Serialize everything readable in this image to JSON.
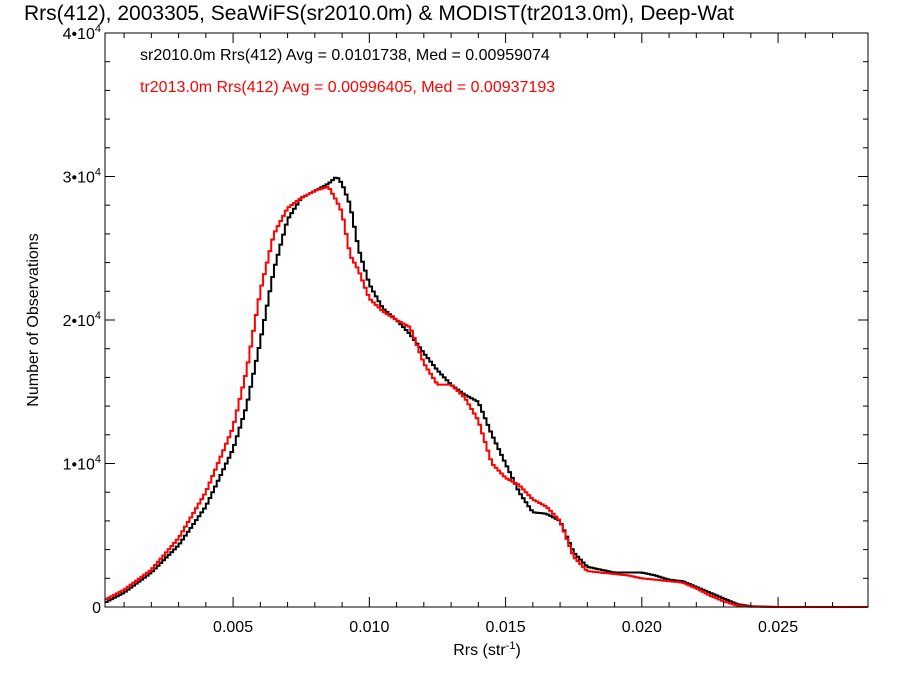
{
  "chart_data": {
    "type": "line",
    "title": "Rrs(412), 2003305, SeaWiFS(sr2010.0m) & MODIST(tr2013.0m), Deep-Wat",
    "xlabel": "Rrs (str",
    "xlabel_sup": "-1",
    "xlabel_end": ")",
    "ylabel": "Number of Observations",
    "xlim": [
      0.0003,
      0.0283
    ],
    "ylim": [
      0,
      40000
    ],
    "x_ticks": [
      {
        "v": 0.005,
        "label": "0.005"
      },
      {
        "v": 0.01,
        "label": "0.010"
      },
      {
        "v": 0.015,
        "label": "0.015"
      },
      {
        "v": 0.02,
        "label": "0.020"
      },
      {
        "v": 0.025,
        "label": "0.025"
      }
    ],
    "y_ticks": [
      {
        "v": 0,
        "base": "0",
        "exp": ""
      },
      {
        "v": 10000,
        "base": "1•10",
        "exp": "4"
      },
      {
        "v": 20000,
        "base": "2•10",
        "exp": "4"
      },
      {
        "v": 30000,
        "base": "3•10",
        "exp": "4"
      },
      {
        "v": 40000,
        "base": "4•10",
        "exp": "4"
      }
    ],
    "grid": false,
    "annotations": [
      "sr2010.0m Rrs(412) Avg = 0.0101738, Med = 0.00959074",
      "tr2013.0m Rrs(412) Avg = 0.00996405, Med = 0.00937193"
    ],
    "series": [
      {
        "color": "#000000",
        "x": [
          0.0003,
          0.001,
          0.002,
          0.003,
          0.004,
          0.005,
          0.0055,
          0.006,
          0.0065,
          0.007,
          0.0075,
          0.008,
          0.0085,
          0.0088,
          0.009,
          0.0093,
          0.0096,
          0.01,
          0.0105,
          0.011,
          0.0115,
          0.012,
          0.0125,
          0.013,
          0.0135,
          0.014,
          0.0145,
          0.015,
          0.0155,
          0.016,
          0.0165,
          0.017,
          0.0175,
          0.018,
          0.0185,
          0.019,
          0.0195,
          0.02,
          0.0205,
          0.021,
          0.0215,
          0.022,
          0.0225,
          0.023,
          0.0235,
          0.024,
          0.025,
          0.028
        ],
        "y": [
          300,
          1000,
          2400,
          4300,
          7000,
          11000,
          14000,
          18500,
          23500,
          27000,
          28500,
          29000,
          29500,
          30000,
          29500,
          28000,
          25000,
          22500,
          20800,
          20000,
          19000,
          17700,
          16500,
          15500,
          14800,
          14300,
          12000,
          10000,
          8000,
          6600,
          6500,
          6000,
          3800,
          2800,
          2600,
          2400,
          2400,
          2400,
          2200,
          1900,
          1800,
          1400,
          1000,
          600,
          200,
          50,
          0,
          0
        ]
      },
      {
        "color": "#ff0000",
        "x": [
          0.0003,
          0.001,
          0.002,
          0.003,
          0.004,
          0.005,
          0.0055,
          0.006,
          0.0065,
          0.007,
          0.0075,
          0.008,
          0.0085,
          0.0088,
          0.009,
          0.0093,
          0.0096,
          0.01,
          0.0105,
          0.011,
          0.0115,
          0.012,
          0.0125,
          0.013,
          0.0135,
          0.014,
          0.0145,
          0.015,
          0.0155,
          0.016,
          0.0165,
          0.017,
          0.0175,
          0.018,
          0.0185,
          0.019,
          0.0195,
          0.02,
          0.0205,
          0.021,
          0.0215,
          0.022,
          0.0225,
          0.023,
          0.0235,
          0.024,
          0.025,
          0.028
        ],
        "y": [
          500,
          1200,
          2600,
          4800,
          8000,
          12500,
          16500,
          22000,
          26000,
          27800,
          28500,
          29000,
          29300,
          28300,
          27500,
          24500,
          23500,
          21500,
          20600,
          20000,
          19500,
          17000,
          15500,
          15500,
          14600,
          13000,
          10000,
          9000,
          8500,
          7500,
          7000,
          6000,
          3500,
          2500,
          2400,
          2300,
          2200,
          2000,
          1900,
          1800,
          1700,
          1300,
          800,
          400,
          100,
          20,
          0,
          0
        ]
      }
    ]
  }
}
